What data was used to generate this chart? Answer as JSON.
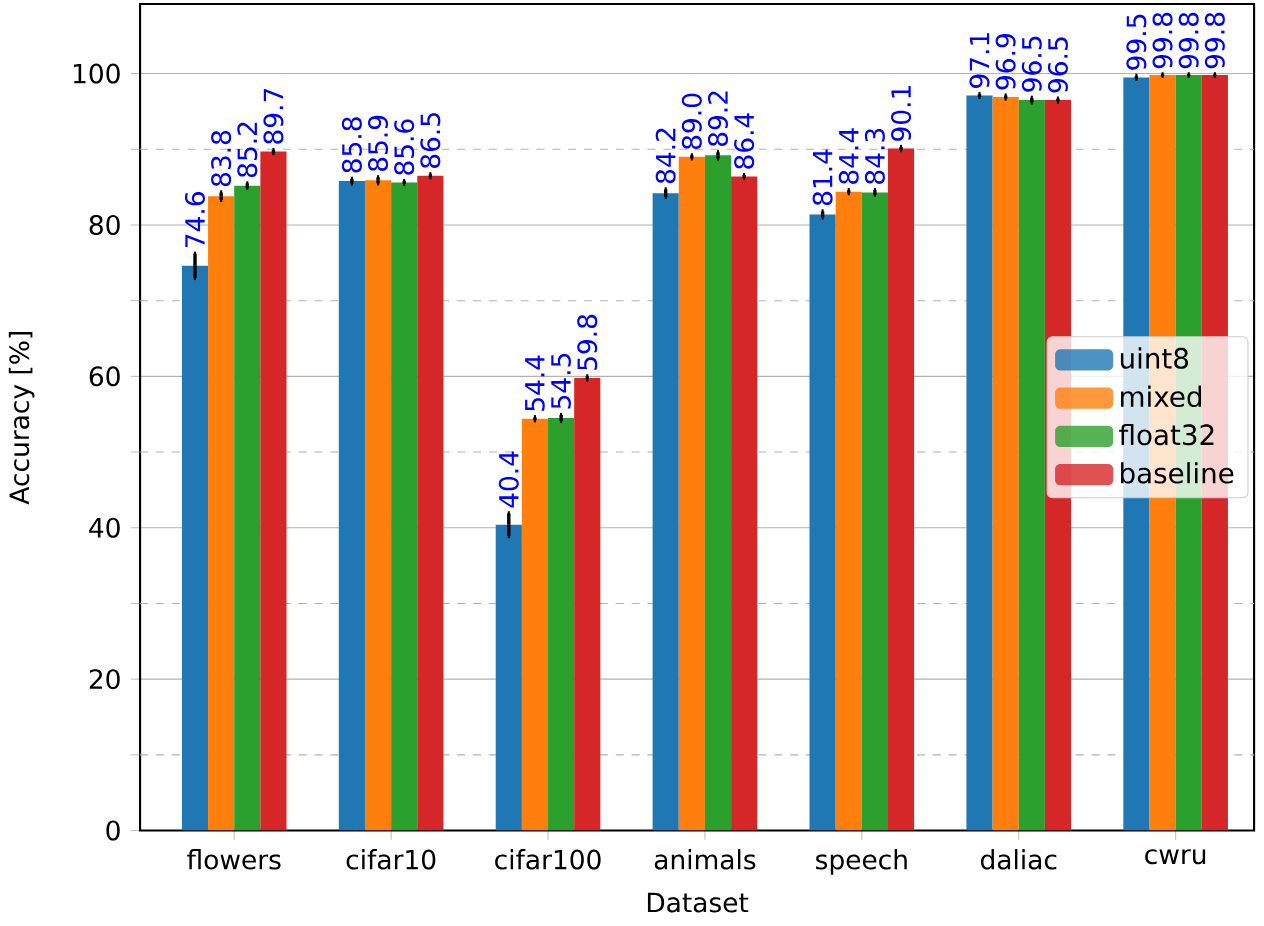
{
  "chart_data": {
    "type": "bar",
    "xlabel": "Dataset",
    "ylabel": "Accuracy [%]",
    "categories": [
      "flowers",
      "cifar10",
      "cifar100",
      "animals",
      "speech",
      "daliac",
      "cwru"
    ],
    "series": [
      {
        "name": "uint8",
        "color": "#1f77b4",
        "values": [
          74.6,
          85.8,
          40.4,
          84.2,
          81.4,
          97.1,
          99.5
        ],
        "errors": [
          1.6,
          0.3,
          1.5,
          0.5,
          0.4,
          0.2,
          0.2
        ],
        "value_labels": [
          "74.6",
          "85.8",
          "40.4",
          "84.2",
          "81.4",
          "97.1",
          "99.5"
        ]
      },
      {
        "name": "mixed",
        "color": "#ff7f0e",
        "values": [
          83.8,
          85.9,
          54.4,
          89.0,
          84.4,
          96.9,
          99.8
        ],
        "errors": [
          0.5,
          0.4,
          0.2,
          0.2,
          0.2,
          0.2,
          0.1
        ],
        "value_labels": [
          "83.8",
          "85.9",
          "54.4",
          "89.0",
          "84.4",
          "96.9",
          "99.8"
        ]
      },
      {
        "name": "float32",
        "color": "#2ca02c",
        "values": [
          85.2,
          85.6,
          54.5,
          89.2,
          84.3,
          96.5,
          99.8
        ],
        "errors": [
          0.3,
          0.2,
          0.4,
          0.4,
          0.3,
          0.3,
          0.1
        ],
        "value_labels": [
          "85.2",
          "85.6",
          "54.5",
          "89.2",
          "84.3",
          "96.5",
          "99.8"
        ]
      },
      {
        "name": "baseline",
        "color": "#d62728",
        "values": [
          89.7,
          86.5,
          59.8,
          86.4,
          90.1,
          96.5,
          99.8
        ],
        "errors": [
          0.2,
          0.2,
          0.2,
          0.2,
          0.2,
          0.2,
          0.1
        ],
        "value_labels": [
          "89.7",
          "86.5",
          "59.8",
          "86.4",
          "90.1",
          "96.5",
          "99.8"
        ]
      }
    ],
    "ylim": [
      0,
      109.2
    ],
    "yticks": [
      0,
      {
        "value": 10,
        "label": null
      },
      20,
      {
        "value": 30,
        "label": null
      },
      40,
      {
        "value": 50,
        "label": null
      },
      60,
      {
        "value": 70,
        "label": null
      },
      80,
      {
        "value": 90,
        "label": null
      },
      100
    ],
    "grid": "y",
    "legend": "right"
  }
}
